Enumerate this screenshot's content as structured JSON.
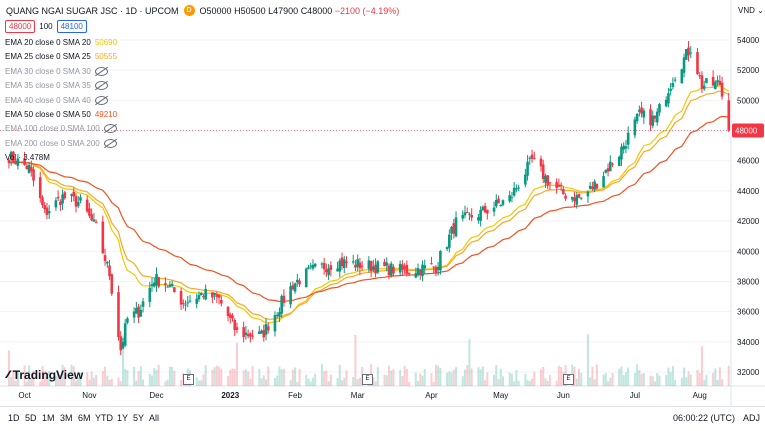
{
  "header": {
    "symbol": "QUANG NGAI SUGAR JSC · 1D · UPCOM",
    "badge": "D",
    "ohlc": {
      "o": "O50000",
      "h": "H50500",
      "l": "L47900",
      "c": "C48000",
      "chg": "−2100 (−4.19%)"
    },
    "sell_price": "48000",
    "spread": "100",
    "buy_price": "48100"
  },
  "indicators": [
    {
      "label": "EMA 20 close 0 SMA 20",
      "value": "50690",
      "color": "#f7c600",
      "visible": true
    },
    {
      "label": "EMA 25 close 0 SMA 25",
      "value": "50555",
      "color": "#f9a825",
      "visible": true
    },
    {
      "label": "EMA 30 close 0 SMA 30",
      "value": "",
      "visible": false
    },
    {
      "label": "EMA 35 close 0 SMA 35",
      "value": "",
      "visible": false
    },
    {
      "label": "EMA 40 close 0 SMA 40",
      "value": "",
      "visible": false
    },
    {
      "label": "EMA 50 close 0 SMA 50",
      "value": "49210",
      "color": "#f4511e",
      "visible": true
    },
    {
      "label": "EMA 100 close 0 SMA 100",
      "value": "",
      "visible": false
    },
    {
      "label": "EMA 200 close 0 SMA 200",
      "value": "",
      "visible": false
    }
  ],
  "volume_label": "Vol · 3.478M",
  "logo_text": "TradingView",
  "currency": "VND",
  "earnings_marker": "E",
  "price_marker": "48000",
  "timeframes": [
    "1D",
    "5D",
    "1M",
    "3M",
    "6M",
    "YTD",
    "1Y",
    "5Y",
    "All"
  ],
  "clock": "06:00:22 (UTC)",
  "adj_label": "ADJ",
  "colors": {
    "up": "#089981",
    "down": "#f23645",
    "ema20": "#f7c600",
    "ema25": "#f9a825",
    "ema50": "#f4511e"
  },
  "chart_data": {
    "type": "candlestick",
    "y_ticks": [
      32000,
      34000,
      36000,
      38000,
      40000,
      42000,
      44000,
      46000,
      48000,
      50000,
      52000,
      54000
    ],
    "ylim": [
      31000,
      55500
    ],
    "x_labels": [
      "Oct",
      "Nov",
      "Dec",
      "2023",
      "Feb",
      "Mar",
      "Apr",
      "May",
      "Jun",
      "Jul",
      "Aug"
    ],
    "last_close": 48000,
    "anchors": [
      {
        "date": "2022-09-26",
        "close": 46300
      },
      {
        "date": "2022-10-05",
        "close": 45500
      },
      {
        "date": "2022-10-12",
        "close": 42500
      },
      {
        "date": "2022-10-20",
        "close": 43600
      },
      {
        "date": "2022-10-28",
        "close": 43200
      },
      {
        "date": "2022-11-04",
        "close": 41500
      },
      {
        "date": "2022-11-10",
        "close": 38500
      },
      {
        "date": "2022-11-15",
        "close": 33500
      },
      {
        "date": "2022-11-18",
        "close": 35500
      },
      {
        "date": "2022-11-23",
        "close": 36000
      },
      {
        "date": "2022-11-30",
        "close": 38200
      },
      {
        "date": "2022-12-06",
        "close": 37800
      },
      {
        "date": "2022-12-13",
        "close": 36600
      },
      {
        "date": "2022-12-22",
        "close": 37200
      },
      {
        "date": "2022-12-29",
        "close": 36800
      },
      {
        "date": "2023-01-06",
        "close": 34600
      },
      {
        "date": "2023-01-17",
        "close": 34400
      },
      {
        "date": "2023-01-31",
        "close": 37800
      },
      {
        "date": "2023-02-08",
        "close": 38700
      },
      {
        "date": "2023-02-20",
        "close": 39300
      },
      {
        "date": "2023-03-08",
        "close": 39000
      },
      {
        "date": "2023-03-22",
        "close": 38700
      },
      {
        "date": "2023-04-05",
        "close": 39000
      },
      {
        "date": "2023-04-14",
        "close": 41900
      },
      {
        "date": "2023-04-26",
        "close": 42600
      },
      {
        "date": "2023-05-08",
        "close": 43500
      },
      {
        "date": "2023-05-18",
        "close": 46000
      },
      {
        "date": "2023-05-26",
        "close": 44500
      },
      {
        "date": "2023-06-01",
        "close": 43800
      },
      {
        "date": "2023-06-09",
        "close": 43500
      },
      {
        "date": "2023-06-15",
        "close": 44400
      },
      {
        "date": "2023-06-26",
        "close": 46500
      },
      {
        "date": "2023-07-05",
        "close": 49000
      },
      {
        "date": "2023-07-12",
        "close": 48700
      },
      {
        "date": "2023-07-20",
        "close": 51500
      },
      {
        "date": "2023-07-28",
        "close": 53500
      },
      {
        "date": "2023-08-02",
        "close": 51000
      },
      {
        "date": "2023-08-10",
        "close": 51100
      },
      {
        "date": "2023-08-14",
        "close": 48000
      }
    ],
    "ema_notes": {
      "EMA 20": 50690,
      "EMA 25": 50555,
      "EMA 50": 49210
    }
  }
}
